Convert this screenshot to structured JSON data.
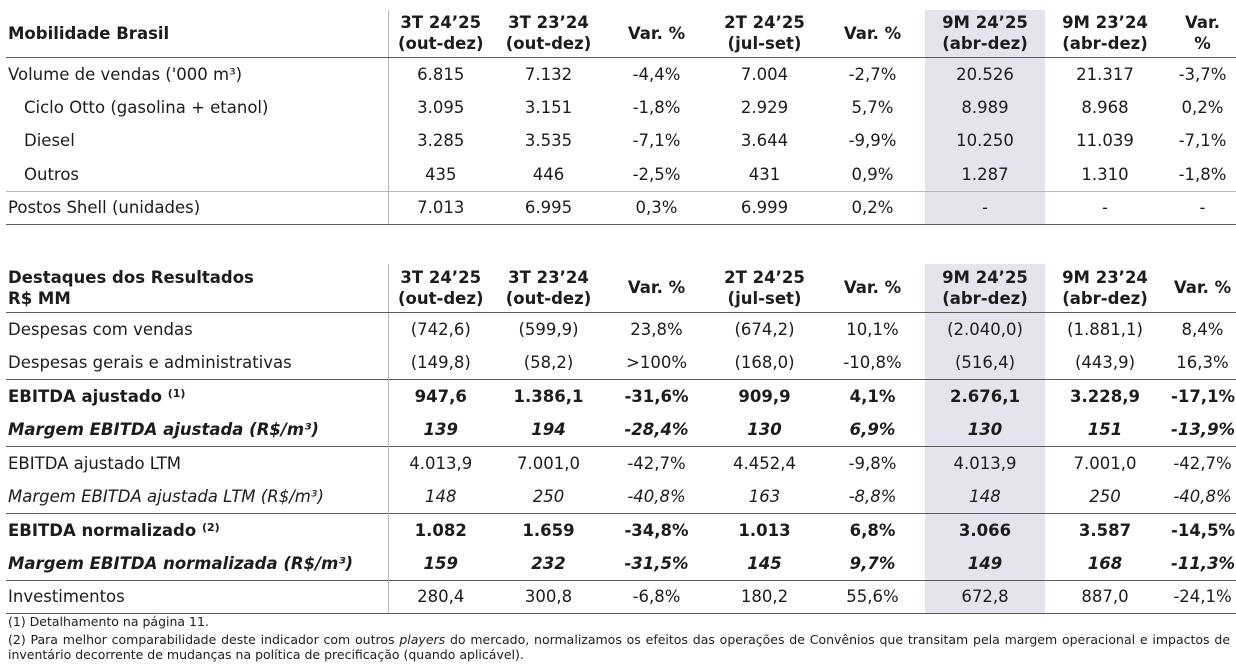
{
  "table1": {
    "headers": [
      "Mobilidade Brasil",
      "3T 24’25 (out-dez)",
      "3T 23’24 (out-dez)",
      "Var. %",
      "2T 24’25 (jul-set)",
      "Var. %",
      "9M 24’25 (abr-dez)",
      "9M 23’24 (abr-dez)",
      "Var. %"
    ],
    "header_lines": [
      [
        "Mobilidade Brasil"
      ],
      [
        "3T 24’25",
        "(out-dez)"
      ],
      [
        "3T 23’24",
        "(out-dez)"
      ],
      [
        "Var. %"
      ],
      [
        "2T 24’25",
        "(jul-set)"
      ],
      [
        "Var. %"
      ],
      [
        "9M 24’25",
        "(abr-dez)"
      ],
      [
        "9M 23’24",
        "(abr-dez)"
      ],
      [
        "Var.",
        "%"
      ]
    ],
    "rows": [
      {
        "label": "Volume de vendas ('000 m³)",
        "values": [
          "6.815",
          "7.132",
          "-4,4%",
          "7.004",
          "-2,7%",
          "20.526",
          "21.317",
          "-3,7%"
        ]
      },
      {
        "label": "Ciclo Otto (gasolina + etanol)",
        "values": [
          "3.095",
          "3.151",
          "-1,8%",
          "2.929",
          "5,7%",
          "8.989",
          "8.968",
          "0,2%"
        ]
      },
      {
        "label": "Diesel",
        "values": [
          "3.285",
          "3.535",
          "-7,1%",
          "3.644",
          "-9,9%",
          "10.250",
          "11.039",
          "-7,1%"
        ]
      },
      {
        "label": "Outros",
        "values": [
          "435",
          "446",
          "-2,5%",
          "431",
          "0,9%",
          "1.287",
          "1.310",
          "-1,8%"
        ]
      },
      {
        "label": "Postos Shell (unidades)",
        "values": [
          "7.013",
          "6.995",
          "0,3%",
          "6.999",
          "0,2%",
          "-",
          "-",
          "-"
        ]
      }
    ]
  },
  "table2": {
    "header_lines": [
      [
        "Destaques dos Resultados",
        "R$ MM"
      ],
      [
        "3T 24’25",
        "(out-dez)"
      ],
      [
        "3T 23’24",
        "(out-dez)"
      ],
      [
        "Var. %"
      ],
      [
        "2T 24’25",
        "(jul-set)"
      ],
      [
        "Var. %"
      ],
      [
        "9M 24’25",
        "(abr-dez)"
      ],
      [
        "9M 23’24",
        "(abr-dez)"
      ],
      [
        "Var. %"
      ]
    ],
    "rows": [
      {
        "label": "Despesas com vendas",
        "sup": "",
        "values": [
          "(742,6)",
          "(599,9)",
          "23,8%",
          "(674,2)",
          "10,1%",
          "(2.040,0)",
          "(1.881,1)",
          "8,4%"
        ]
      },
      {
        "label": "Despesas gerais e administrativas",
        "sup": "",
        "values": [
          "(149,8)",
          "(58,2)",
          ">100%",
          "(168,0)",
          "-10,8%",
          "(516,4)",
          "(443,9)",
          "16,3%"
        ]
      },
      {
        "label": "EBITDA ajustado",
        "sup": "(1)",
        "values": [
          "947,6",
          "1.386,1",
          "-31,6%",
          "909,9",
          "4,1%",
          "2.676,1",
          "3.228,9",
          "-17,1%"
        ]
      },
      {
        "label": "Margem EBITDA ajustada (R$/m³)",
        "sup": "",
        "values": [
          "139",
          "194",
          "-28,4%",
          "130",
          "6,9%",
          "130",
          "151",
          "-13,9%"
        ]
      },
      {
        "label": "EBITDA ajustado LTM",
        "sup": "",
        "values": [
          "4.013,9",
          "7.001,0",
          "-42,7%",
          "4.452,4",
          "-9,8%",
          "4.013,9",
          "7.001,0",
          "-42,7%"
        ]
      },
      {
        "label": "Margem EBITDA ajustada LTM (R$/m³)",
        "sup": "",
        "values": [
          "148",
          "250",
          "-40,8%",
          "163",
          "-8,8%",
          "148",
          "250",
          "-40,8%"
        ]
      },
      {
        "label": "EBITDA normalizado",
        "sup": "(2)",
        "values": [
          "1.082",
          "1.659",
          "-34,8%",
          "1.013",
          "6,8%",
          "3.066",
          "3.587",
          "-14,5%"
        ]
      },
      {
        "label": "Margem EBITDA normalizada (R$/m³)",
        "sup": "",
        "values": [
          "159",
          "232",
          "-31,5%",
          "145",
          "9,7%",
          "149",
          "168",
          "-11,3%"
        ]
      },
      {
        "label": "Investimentos",
        "sup": "",
        "values": [
          "280,4",
          "300,8",
          "-6,8%",
          "180,2",
          "55,6%",
          "672,8",
          "887,0",
          "-24,1%"
        ]
      }
    ]
  },
  "footnotes": {
    "note1": "(1) Detalhamento na página 11.",
    "note2_a": "(2) Para melhor comparabilidade deste indicador com outros ",
    "note2_em": "players",
    "note2_b": " do mercado, normalizamos os efeitos das operações de Convênios que transitam pela margem operacional e impactos de inventário decorrente de mudanças na política de precificação (quando aplicável)."
  },
  "colors": {
    "shade": "#e6e3ee",
    "rule": "#5a5a5a"
  }
}
